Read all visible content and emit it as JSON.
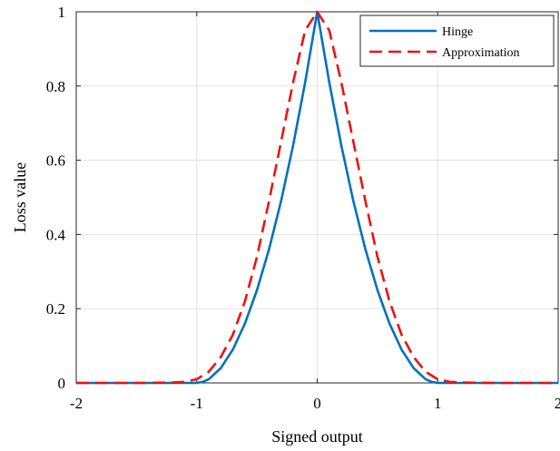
{
  "chart_data": {
    "type": "line",
    "title": "",
    "xlabel": "Signed output",
    "ylabel": "Loss value",
    "xlim": [
      -2,
      2
    ],
    "ylim": [
      0,
      1
    ],
    "grid": true,
    "legend_position": "top-right",
    "x_ticks": [
      {
        "value": -2,
        "label": "-2"
      },
      {
        "value": -1,
        "label": "-1"
      },
      {
        "value": 0,
        "label": "0"
      },
      {
        "value": 1,
        "label": "1"
      },
      {
        "value": 2,
        "label": "2"
      }
    ],
    "y_ticks": [
      {
        "value": 0,
        "label": "0"
      },
      {
        "value": 0.2,
        "label": "0.2"
      },
      {
        "value": 0.4,
        "label": "0.4"
      },
      {
        "value": 0.6,
        "label": "0.6"
      },
      {
        "value": 0.8,
        "label": "0.8"
      },
      {
        "value": 1,
        "label": "1"
      }
    ],
    "series": [
      {
        "name": "Hinge",
        "color": "#0072BD",
        "dash": "solid",
        "x": [
          -2,
          -1.5,
          -1.2,
          -1.0,
          -0.95,
          -0.9,
          -0.8,
          -0.7,
          -0.6,
          -0.5,
          -0.4,
          -0.3,
          -0.2,
          -0.1,
          0,
          0.1,
          0.2,
          0.3,
          0.4,
          0.5,
          0.6,
          0.7,
          0.8,
          0.9,
          0.95,
          1.0,
          1.2,
          1.5,
          2
        ],
        "y": [
          0,
          0,
          0,
          0,
          0.003,
          0.01,
          0.04,
          0.09,
          0.16,
          0.25,
          0.36,
          0.49,
          0.64,
          0.81,
          1.0,
          0.81,
          0.64,
          0.49,
          0.36,
          0.25,
          0.16,
          0.09,
          0.04,
          0.01,
          0.003,
          0,
          0,
          0,
          0
        ]
      },
      {
        "name": "Approximation",
        "color": "#EE1111",
        "dash": "dashed",
        "x": [
          -2,
          -1.5,
          -1.2,
          -1.1,
          -1.0,
          -0.9,
          -0.8,
          -0.7,
          -0.6,
          -0.5,
          -0.4,
          -0.3,
          -0.2,
          -0.1,
          0,
          0.1,
          0.2,
          0.3,
          0.4,
          0.5,
          0.6,
          0.7,
          0.8,
          0.9,
          1.0,
          1.1,
          1.2,
          1.5,
          2
        ],
        "y": [
          0,
          0,
          0.001,
          0.003,
          0.01,
          0.03,
          0.07,
          0.13,
          0.22,
          0.34,
          0.49,
          0.65,
          0.81,
          0.95,
          1.0,
          0.95,
          0.81,
          0.65,
          0.49,
          0.34,
          0.22,
          0.13,
          0.07,
          0.03,
          0.01,
          0.003,
          0.001,
          0,
          0
        ]
      }
    ]
  }
}
